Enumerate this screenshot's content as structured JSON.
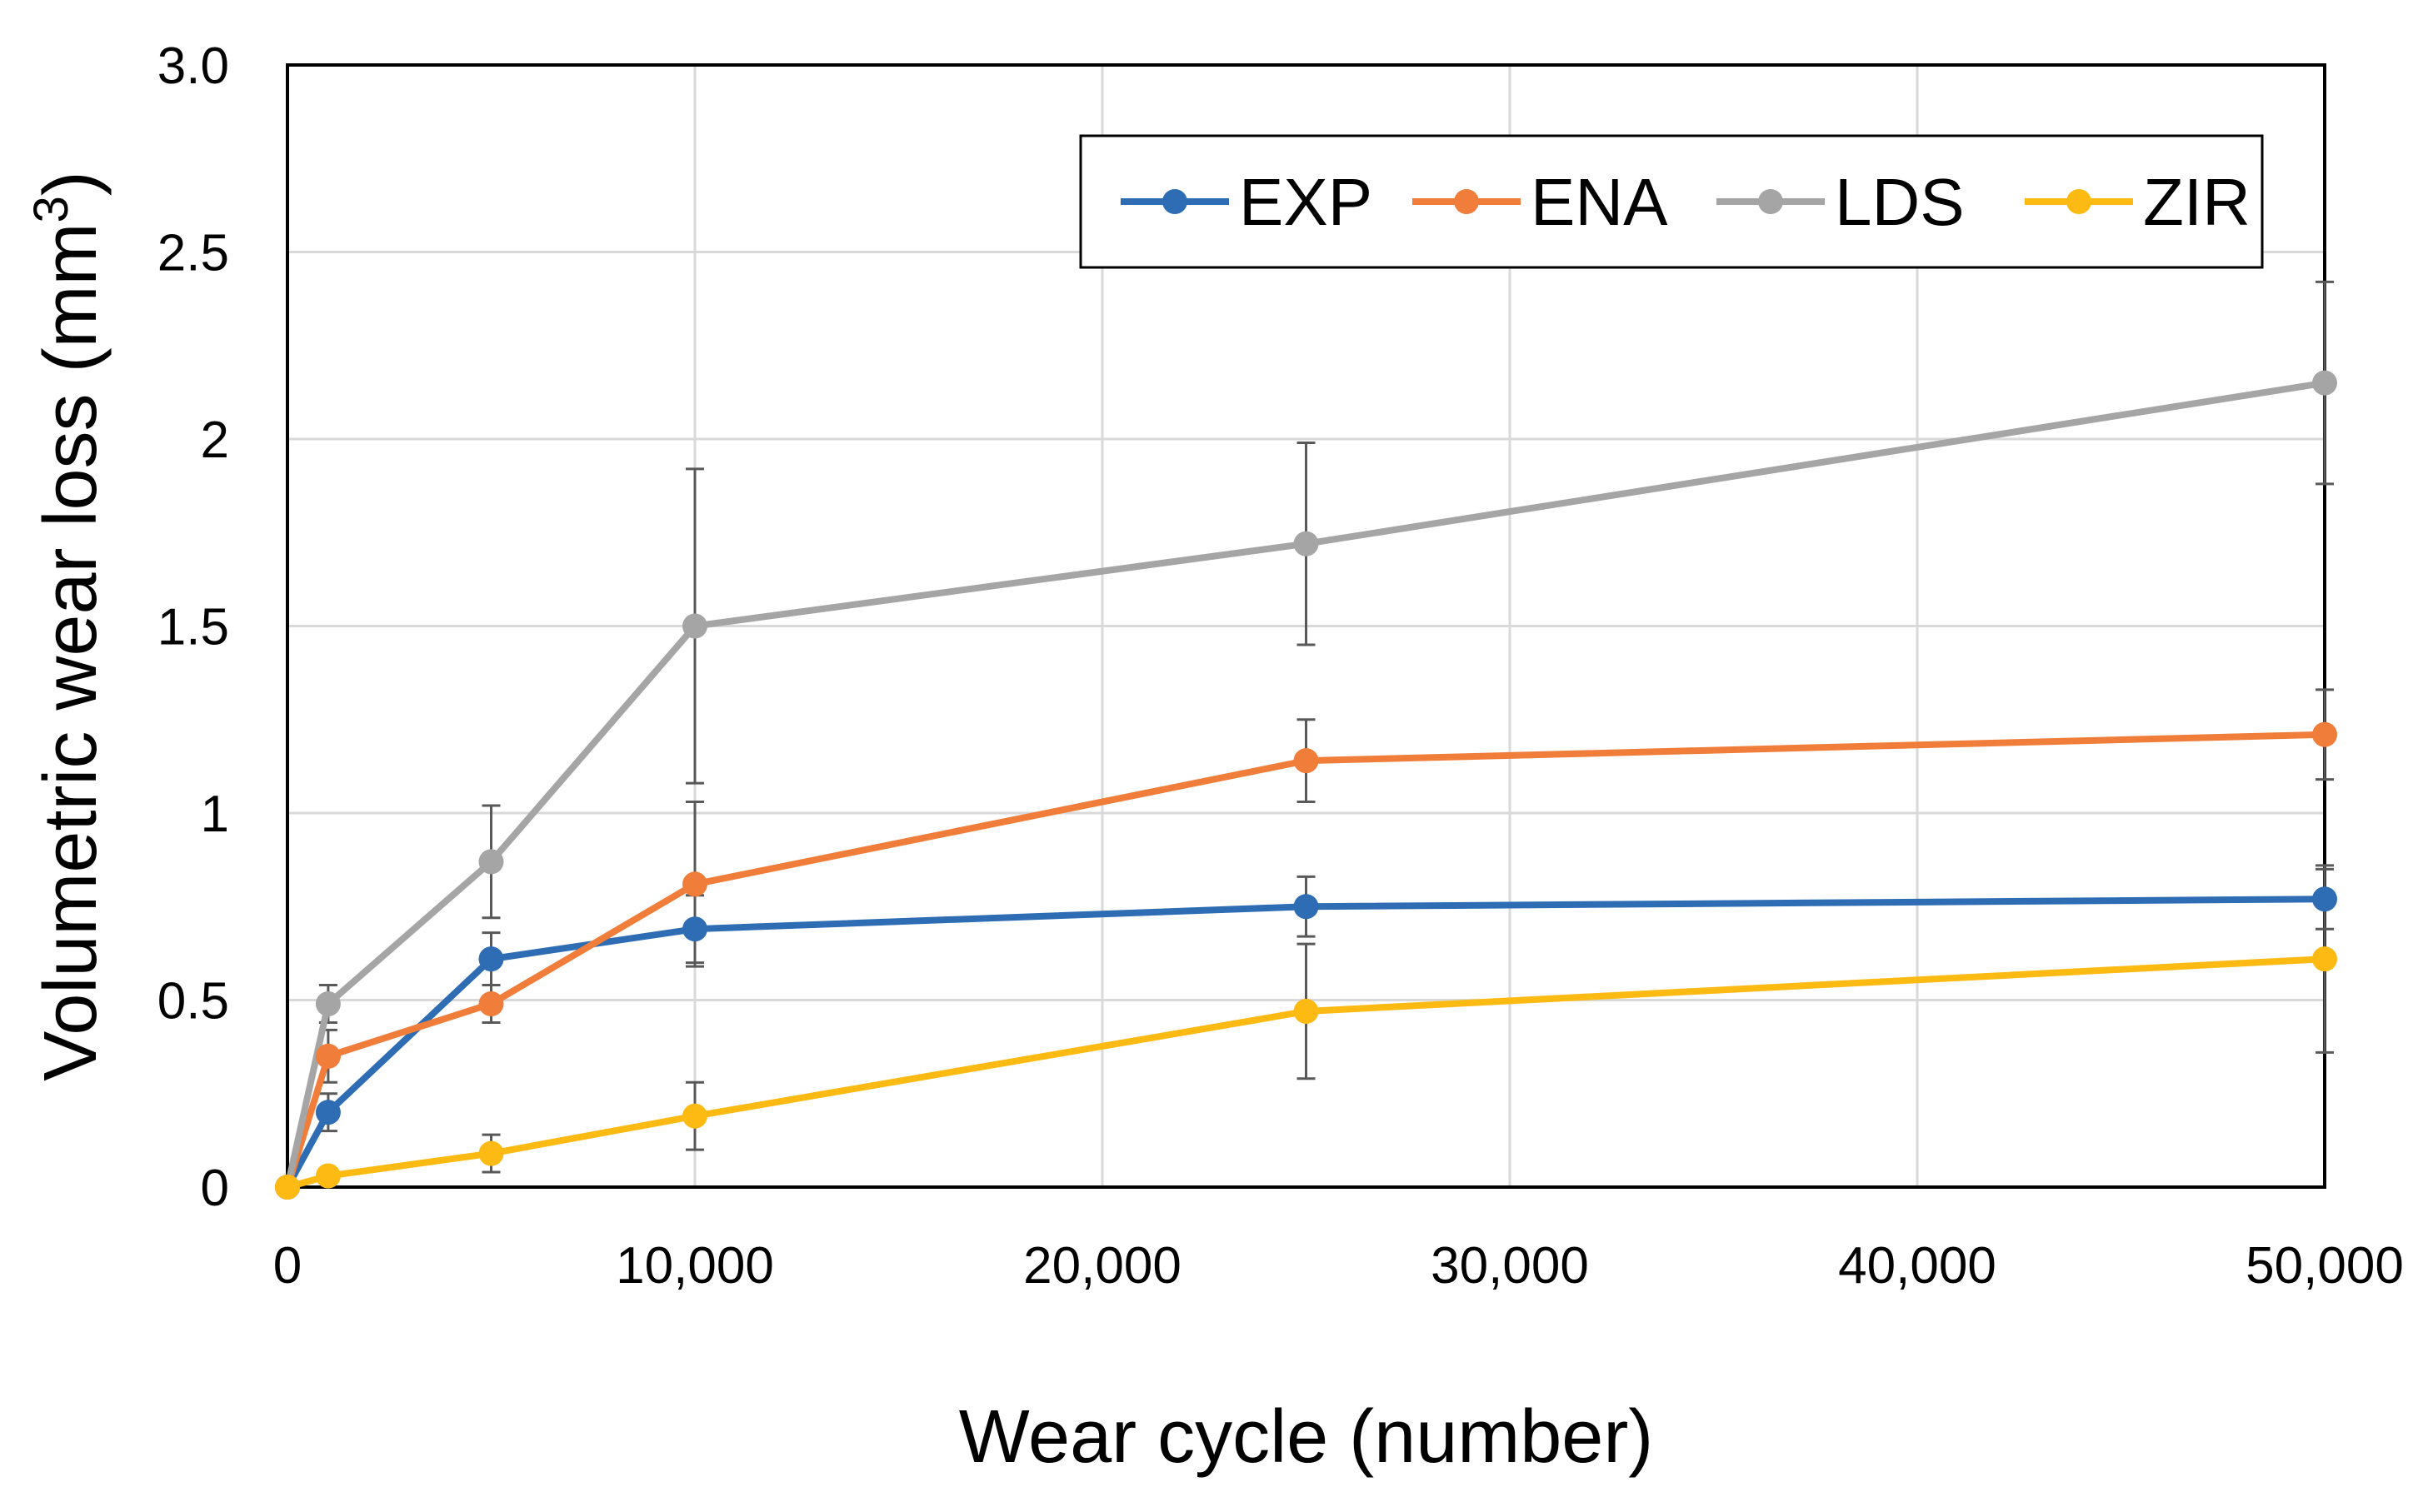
{
  "chart_data": {
    "type": "line",
    "xlabel": "Wear cycle (number)",
    "ylabel_main": "Volumetric wear loss (mm",
    "ylabel_sup": "3",
    "ylabel_end": ")",
    "xlim": [
      0,
      50000
    ],
    "ylim": [
      0,
      3.0
    ],
    "x_ticks": [
      0,
      10000,
      20000,
      30000,
      40000,
      50000
    ],
    "x_tick_labels": [
      "0",
      "10,000",
      "20,000",
      "30,000",
      "40,000",
      "50,000"
    ],
    "y_ticks": [
      0,
      0.5,
      1,
      1.5,
      2,
      2.5,
      3.0
    ],
    "y_tick_labels": [
      "0",
      "0.5",
      "1",
      "1.5",
      "2",
      "2.5",
      "3.0"
    ],
    "grid": true,
    "legend_position": "top-right",
    "x": [
      0,
      1000,
      5000,
      10000,
      25000,
      50000
    ],
    "series": [
      {
        "name": "EXP",
        "color": "#2E6DB4",
        "values": [
          0,
          0.2,
          0.61,
          0.69,
          0.75,
          0.77
        ],
        "errors": [
          0,
          0.05,
          0.07,
          0.09,
          0.08,
          0.08
        ]
      },
      {
        "name": "ENA",
        "color": "#F07D3A",
        "values": [
          0,
          0.35,
          0.49,
          0.81,
          1.14,
          1.21
        ],
        "errors": [
          0,
          0.07,
          0.05,
          0.22,
          0.11,
          0.12
        ]
      },
      {
        "name": "LDS",
        "color": "#A5A5A5",
        "values": [
          0,
          0.49,
          0.87,
          1.5,
          1.72,
          2.15
        ],
        "errors": [
          0,
          0.05,
          0.15,
          0.42,
          0.27,
          0.27
        ]
      },
      {
        "name": "ZIR",
        "color": "#FDBA12",
        "values": [
          0,
          0.03,
          0.09,
          0.19,
          0.47,
          0.61
        ],
        "errors": [
          0,
          0.02,
          0.05,
          0.09,
          0.18,
          0.25
        ]
      }
    ]
  }
}
